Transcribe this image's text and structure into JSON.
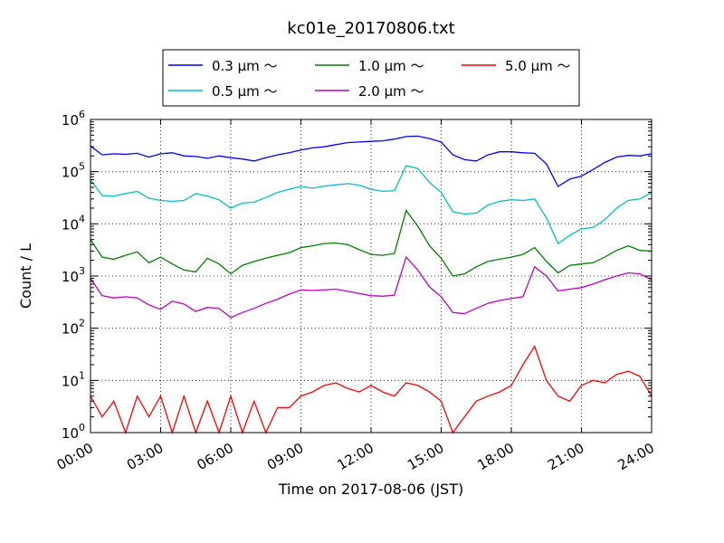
{
  "chart_data": {
    "type": "line",
    "title": "kc01e_20170806.txt",
    "xlabel": "Time on 2017-08-06 (JST)",
    "ylabel": "Count / L",
    "x_ticks": [
      "00:00",
      "03:00",
      "06:00",
      "09:00",
      "12:00",
      "15:00",
      "18:00",
      "21:00",
      "24:00"
    ],
    "xlim_hours": [
      0,
      24
    ],
    "y_scale": "log",
    "ylim": [
      1,
      1000000
    ],
    "y_ticks": [
      1,
      10,
      100,
      1000,
      10000,
      100000,
      1000000
    ],
    "y_tick_bases": [
      "10",
      "10",
      "10",
      "10",
      "10",
      "10",
      "10"
    ],
    "y_tick_exps": [
      "0",
      "1",
      "2",
      "3",
      "4",
      "5",
      "6"
    ],
    "grid": true,
    "legend_placement": "top-center",
    "x": [
      0,
      0.5,
      1,
      1.5,
      2,
      2.5,
      3,
      3.5,
      4,
      4.5,
      5,
      5.5,
      6,
      6.5,
      7,
      7.5,
      8,
      8.5,
      9,
      9.5,
      10,
      10.5,
      11,
      11.5,
      12,
      12.5,
      13,
      13.5,
      14,
      14.5,
      15,
      15.5,
      16,
      16.5,
      17,
      17.5,
      18,
      18.5,
      19,
      19.5,
      20,
      20.5,
      21,
      21.5,
      22,
      22.5,
      23,
      23.5,
      24
    ],
    "series": [
      {
        "name": "0.3 μm ～",
        "color": "#0000ff",
        "values": [
          310000,
          210000,
          220000,
          215000,
          225000,
          190000,
          220000,
          230000,
          200000,
          195000,
          180000,
          200000,
          185000,
          175000,
          160000,
          185000,
          210000,
          230000,
          260000,
          285000,
          300000,
          330000,
          360000,
          370000,
          380000,
          390000,
          420000,
          470000,
          480000,
          430000,
          370000,
          210000,
          170000,
          160000,
          210000,
          240000,
          240000,
          230000,
          225000,
          140000,
          52000,
          72000,
          82000,
          110000,
          150000,
          190000,
          205000,
          200000,
          220000
        ]
      },
      {
        "name": "0.5 μm ～",
        "color": "#00bfbf",
        "values": [
          70000,
          35000,
          34000,
          38000,
          42000,
          31000,
          28000,
          27000,
          28000,
          38000,
          34000,
          29000,
          20000,
          25000,
          26000,
          32000,
          40000,
          46000,
          52000,
          48000,
          53000,
          56000,
          59000,
          55000,
          46000,
          42000,
          43000,
          130000,
          115000,
          62000,
          40000,
          17000,
          15500,
          16000,
          23000,
          27000,
          29000,
          28000,
          30000,
          13000,
          4200,
          6000,
          8000,
          8500,
          12000,
          20000,
          28000,
          30000,
          40000
        ]
      },
      {
        "name": "1.0 μm ～",
        "color": "#007f00",
        "values": [
          5000,
          2300,
          2100,
          2500,
          2900,
          1800,
          2300,
          1700,
          1300,
          1200,
          2200,
          1700,
          1100,
          1600,
          1900,
          2200,
          2500,
          2800,
          3500,
          3800,
          4200,
          4300,
          4000,
          3200,
          2600,
          2500,
          2700,
          18000,
          9000,
          3800,
          2200,
          1000,
          1100,
          1500,
          1900,
          2100,
          2300,
          2600,
          3500,
          1900,
          1150,
          1600,
          1700,
          1800,
          2300,
          3100,
          3800,
          3100,
          3000
        ]
      },
      {
        "name": "2.0 μm ～",
        "color": "#bf00bf",
        "values": [
          900,
          420,
          380,
          400,
          380,
          280,
          230,
          330,
          290,
          210,
          250,
          240,
          160,
          200,
          240,
          300,
          360,
          450,
          540,
          530,
          540,
          560,
          510,
          460,
          420,
          410,
          430,
          2300,
          1300,
          620,
          400,
          200,
          190,
          240,
          300,
          340,
          370,
          400,
          1500,
          1000,
          520,
          560,
          600,
          700,
          850,
          1000,
          1150,
          1100,
          850
        ]
      },
      {
        "name": "5.0 μm ～",
        "color": "#ff0000",
        "values": [
          5,
          2,
          4,
          1,
          5,
          2,
          5,
          1,
          5,
          1,
          4,
          1,
          5,
          1,
          4,
          1,
          3,
          3,
          5,
          6,
          8,
          9,
          7,
          6,
          8,
          6,
          5,
          9,
          8,
          6,
          4,
          1,
          2,
          4,
          5,
          6,
          8,
          20,
          45,
          10,
          5,
          4,
          8,
          10,
          9,
          13,
          15,
          12,
          5
        ]
      }
    ]
  }
}
